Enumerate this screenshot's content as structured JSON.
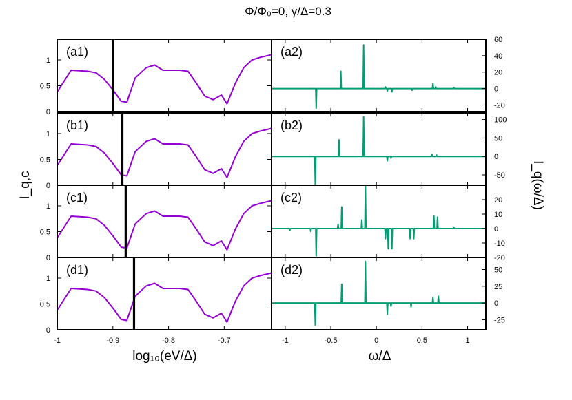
{
  "figure": {
    "title": "Φ/Φ₀=0, γ/Δ=0.3",
    "left_xlabel": "log₁₀(eV/Δ)",
    "left_ylabel": "I_q,c",
    "right_xlabel": "ω/Δ",
    "right_ylabel": "I_q(ω/Δ)",
    "colors": {
      "left_curve": "#9400D3",
      "right_curve": "#009E73",
      "marker": "#000000"
    }
  },
  "chart_data": [
    {
      "type": "line",
      "panel": "(a1)",
      "xlim": [
        -1.0,
        -0.615
      ],
      "ylim": [
        0,
        1.4
      ],
      "xticks": [
        "-1",
        "-0.9",
        "-0.8",
        "-0.7"
      ],
      "xtick_values": [
        -1.0,
        -0.9,
        -0.8,
        -0.7
      ],
      "yticks": [
        "0",
        "0.5",
        "1"
      ],
      "ytick_values": [
        0,
        0.5,
        1
      ],
      "x": [
        -1.0,
        -0.975,
        -0.96,
        -0.945,
        -0.93,
        -0.915,
        -0.9,
        -0.885,
        -0.875,
        -0.86,
        -0.84,
        -0.825,
        -0.81,
        -0.795,
        -0.78,
        -0.765,
        -0.75,
        -0.735,
        -0.72,
        -0.705,
        -0.695,
        -0.68,
        -0.665,
        -0.65,
        -0.635,
        -0.615
      ],
      "y": [
        0.38,
        0.8,
        0.79,
        0.78,
        0.75,
        0.62,
        0.42,
        0.2,
        0.18,
        0.65,
        0.85,
        0.9,
        0.8,
        0.8,
        0.8,
        0.78,
        0.55,
        0.3,
        0.23,
        0.32,
        0.15,
        0.55,
        0.85,
        1.0,
        1.05,
        1.1
      ],
      "marker_x": -0.9
    },
    {
      "type": "line",
      "panel": "(b1)",
      "xlim": [
        -1.0,
        -0.615
      ],
      "ylim": [
        0,
        1.4
      ],
      "xticks": [
        "-1",
        "-0.9",
        "-0.8",
        "-0.7"
      ],
      "xtick_values": [
        -1.0,
        -0.9,
        -0.8,
        -0.7
      ],
      "yticks": [
        "0",
        "0.5",
        "1"
      ],
      "ytick_values": [
        0,
        0.5,
        1
      ],
      "x": [
        -1.0,
        -0.975,
        -0.96,
        -0.945,
        -0.93,
        -0.915,
        -0.9,
        -0.885,
        -0.875,
        -0.86,
        -0.84,
        -0.825,
        -0.81,
        -0.795,
        -0.78,
        -0.765,
        -0.75,
        -0.735,
        -0.72,
        -0.705,
        -0.695,
        -0.68,
        -0.665,
        -0.65,
        -0.635,
        -0.615
      ],
      "y": [
        0.38,
        0.8,
        0.79,
        0.78,
        0.75,
        0.62,
        0.42,
        0.2,
        0.18,
        0.65,
        0.85,
        0.9,
        0.8,
        0.8,
        0.8,
        0.78,
        0.55,
        0.3,
        0.23,
        0.32,
        0.15,
        0.55,
        0.85,
        1.0,
        1.05,
        1.1
      ],
      "marker_x": -0.883
    },
    {
      "type": "line",
      "panel": "(c1)",
      "xlim": [
        -1.0,
        -0.615
      ],
      "ylim": [
        0,
        1.4
      ],
      "xticks": [
        "-1",
        "-0.9",
        "-0.8",
        "-0.7"
      ],
      "xtick_values": [
        -1.0,
        -0.9,
        -0.8,
        -0.7
      ],
      "yticks": [
        "0",
        "0.5",
        "1"
      ],
      "ytick_values": [
        0,
        0.5,
        1
      ],
      "x": [
        -1.0,
        -0.975,
        -0.96,
        -0.945,
        -0.93,
        -0.915,
        -0.9,
        -0.885,
        -0.875,
        -0.86,
        -0.84,
        -0.825,
        -0.81,
        -0.795,
        -0.78,
        -0.765,
        -0.75,
        -0.735,
        -0.72,
        -0.705,
        -0.695,
        -0.68,
        -0.665,
        -0.65,
        -0.635,
        -0.615
      ],
      "y": [
        0.38,
        0.8,
        0.79,
        0.78,
        0.75,
        0.62,
        0.42,
        0.2,
        0.18,
        0.65,
        0.85,
        0.9,
        0.8,
        0.8,
        0.8,
        0.78,
        0.55,
        0.3,
        0.23,
        0.32,
        0.15,
        0.55,
        0.85,
        1.0,
        1.05,
        1.1
      ],
      "marker_x": -0.877
    },
    {
      "type": "line",
      "panel": "(d1)",
      "xlim": [
        -1.0,
        -0.615
      ],
      "ylim": [
        0,
        1.4
      ],
      "xticks": [
        "-1",
        "-0.9",
        "-0.8",
        "-0.7"
      ],
      "xtick_values": [
        -1.0,
        -0.9,
        -0.8,
        -0.7
      ],
      "yticks": [
        "0",
        "0.5",
        "1"
      ],
      "ytick_values": [
        0,
        0.5,
        1
      ],
      "x": [
        -1.0,
        -0.975,
        -0.96,
        -0.945,
        -0.93,
        -0.915,
        -0.9,
        -0.885,
        -0.875,
        -0.86,
        -0.84,
        -0.825,
        -0.81,
        -0.795,
        -0.78,
        -0.765,
        -0.75,
        -0.735,
        -0.72,
        -0.705,
        -0.695,
        -0.68,
        -0.665,
        -0.65,
        -0.635,
        -0.615
      ],
      "y": [
        0.38,
        0.8,
        0.79,
        0.78,
        0.75,
        0.62,
        0.42,
        0.2,
        0.18,
        0.65,
        0.85,
        0.9,
        0.8,
        0.8,
        0.8,
        0.78,
        0.55,
        0.3,
        0.23,
        0.32,
        0.15,
        0.55,
        0.85,
        1.0,
        1.05,
        1.1
      ],
      "marker_x": -0.862
    },
    {
      "type": "line",
      "panel": "(a2)",
      "xlim": [
        -1.15,
        1.2
      ],
      "ylim": [
        -28,
        60
      ],
      "xticks": [
        "-1",
        "-0.5",
        "0",
        "0.5",
        "1"
      ],
      "xtick_values": [
        -1,
        -0.5,
        0,
        0.5,
        1
      ],
      "yticks": [
        "-20",
        "0",
        "20",
        "40",
        "60"
      ],
      "ytick_values": [
        -20,
        0,
        20,
        40,
        60
      ],
      "baseline": 0,
      "spikes": [
        [
          -0.39,
          21
        ],
        [
          -0.66,
          -24
        ],
        [
          -0.14,
          53
        ],
        [
          0.1,
          2
        ],
        [
          0.12,
          -3
        ],
        [
          0.17,
          -4
        ],
        [
          0.39,
          -2
        ],
        [
          0.62,
          6
        ],
        [
          0.65,
          2
        ],
        [
          0.85,
          1
        ]
      ]
    },
    {
      "type": "line",
      "panel": "(b2)",
      "xlim": [
        -1.15,
        1.2
      ],
      "ylim": [
        -78,
        118
      ],
      "xticks": [
        "-1",
        "-0.5",
        "0",
        "0.5",
        "1"
      ],
      "xtick_values": [
        -1,
        -0.5,
        0,
        0.5,
        1
      ],
      "yticks": [
        "-50",
        "0",
        "50",
        "100"
      ],
      "ytick_values": [
        -50,
        0,
        50,
        100
      ],
      "baseline": 0,
      "spikes": [
        [
          -0.41,
          45
        ],
        [
          -0.67,
          -77
        ],
        [
          -0.14,
          108
        ],
        [
          0.12,
          -12
        ],
        [
          0.16,
          -5
        ],
        [
          0.61,
          5
        ],
        [
          0.66,
          4
        ]
      ]
    },
    {
      "type": "line",
      "panel": "(c2)",
      "xlim": [
        -1.15,
        1.2
      ],
      "ylim": [
        -20,
        30
      ],
      "xticks": [
        "-1",
        "-0.5",
        "0",
        "0.5",
        "1"
      ],
      "xtick_values": [
        -1,
        -0.5,
        0,
        0.5,
        1
      ],
      "yticks": [
        "-20",
        "-10",
        "0",
        "10",
        "20"
      ],
      "ytick_values": [
        -20,
        -10,
        0,
        10,
        20
      ],
      "baseline": 0,
      "spikes": [
        [
          -0.95,
          -1.5
        ],
        [
          -0.72,
          -2
        ],
        [
          -0.42,
          3
        ],
        [
          -0.38,
          15
        ],
        [
          -0.66,
          -19
        ],
        [
          -0.16,
          6
        ],
        [
          -0.12,
          30
        ],
        [
          0.1,
          -7
        ],
        [
          0.13,
          -14
        ],
        [
          0.17,
          -14
        ],
        [
          0.37,
          -7
        ],
        [
          0.41,
          -7
        ],
        [
          0.63,
          9
        ],
        [
          0.67,
          8
        ],
        [
          0.85,
          1
        ]
      ]
    },
    {
      "type": "line",
      "panel": "(d2)",
      "xlim": [
        -1.15,
        1.2
      ],
      "ylim": [
        -40,
        68
      ],
      "xticks": [
        "-1",
        "-0.5",
        "0",
        "0.5",
        "1"
      ],
      "xtick_values": [
        -1,
        -0.5,
        0,
        0.5,
        1
      ],
      "yticks": [
        "-25",
        "0",
        "25",
        "50"
      ],
      "ytick_values": [
        -25,
        0,
        25,
        50
      ],
      "baseline": 0,
      "spikes": [
        [
          -0.67,
          -33
        ],
        [
          -0.38,
          28
        ],
        [
          -0.12,
          62
        ],
        [
          0.12,
          -17
        ],
        [
          0.16,
          -5
        ],
        [
          0.38,
          -6
        ],
        [
          0.62,
          8
        ],
        [
          0.68,
          10
        ]
      ]
    }
  ]
}
